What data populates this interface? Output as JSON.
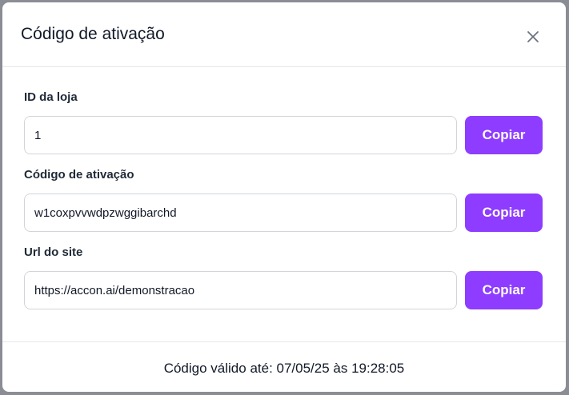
{
  "dialog": {
    "title": "Código de ativação",
    "close_icon": "close-x-icon",
    "fields": [
      {
        "label": "ID da loja",
        "value": "1",
        "button": "Copiar"
      },
      {
        "label": "Código de ativação",
        "value": "w1coxpvvwdpzwggibarchd",
        "button": "Copiar"
      },
      {
        "label": "Url do site",
        "value": "https://accon.ai/demonstracao",
        "button": "Copiar"
      }
    ],
    "footer": "Código válido até: 07/05/25 às 19:28:05"
  },
  "colors": {
    "accent": "#8e3cff",
    "backdrop": "#8b8d94"
  }
}
